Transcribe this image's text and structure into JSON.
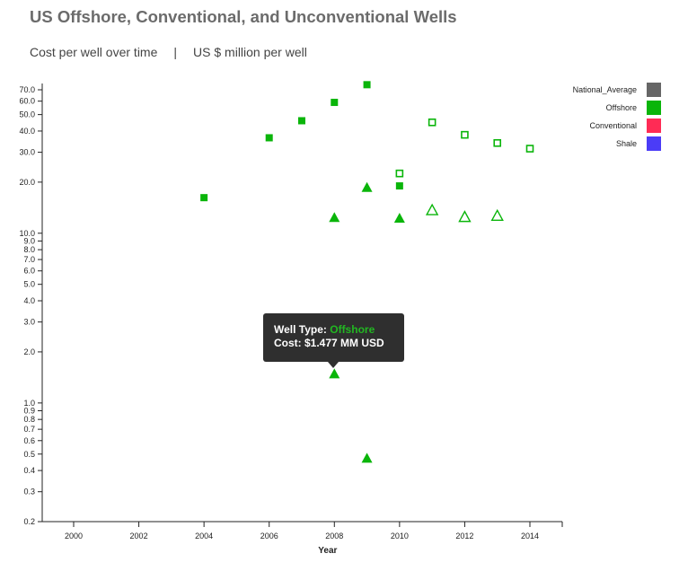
{
  "title": "US Offshore, Conventional, and Unconventional Wells",
  "subtitle_left": "Cost per well over time",
  "subtitle_sep": "|",
  "subtitle_right": "US $ million per well",
  "legend": [
    {
      "label": "National_Average",
      "color": "#666666"
    },
    {
      "label": "Offshore",
      "color": "#0ab50a"
    },
    {
      "label": "Conventional",
      "color": "#ff2b55"
    },
    {
      "label": "Shale",
      "color": "#4b3cf7"
    }
  ],
  "tooltip": {
    "type_label": "Well Type: ",
    "type_value": "Offshore",
    "cost_text": "Cost: $1.477 MM USD"
  },
  "chart_data": {
    "type": "scatter",
    "xlabel": "Year",
    "ylabel": "",
    "xlim": [
      1999,
      2015
    ],
    "ylim": [
      0.2,
      80
    ],
    "yscale": "log",
    "x_ticks": [
      "2000",
      "2002",
      "2004",
      "2006",
      "2008",
      "2010",
      "2012",
      "2014"
    ],
    "y_ticks": [
      {
        "v": 0.2,
        "label": "0.2"
      },
      {
        "v": 0.3,
        "label": "0.3"
      },
      {
        "v": 0.4,
        "label": "0.4"
      },
      {
        "v": 0.5,
        "label": "0.5"
      },
      {
        "v": 0.6,
        "label": "0.6"
      },
      {
        "v": 0.7,
        "label": "0.7"
      },
      {
        "v": 0.8,
        "label": "0.8"
      },
      {
        "v": 0.9,
        "label": "0.9"
      },
      {
        "v": 1.0,
        "label": "1.0"
      },
      {
        "v": 2.0,
        "label": "2.0"
      },
      {
        "v": 3.0,
        "label": "3.0"
      },
      {
        "v": 4.0,
        "label": "4.0"
      },
      {
        "v": 5.0,
        "label": "5.0"
      },
      {
        "v": 6.0,
        "label": "6.0"
      },
      {
        "v": 7.0,
        "label": "7.0"
      },
      {
        "v": 8.0,
        "label": "8.0"
      },
      {
        "v": 9.0,
        "label": "9.0"
      },
      {
        "v": 10.0,
        "label": "10.0"
      },
      {
        "v": 20.0,
        "label": "20.0"
      },
      {
        "v": 30.0,
        "label": "30.0"
      },
      {
        "v": 40.0,
        "label": "40.0"
      },
      {
        "v": 50.0,
        "label": "50.0"
      },
      {
        "v": 60.0,
        "label": "60.0"
      },
      {
        "v": 70.0,
        "label": "70.0"
      }
    ],
    "series": [
      {
        "name": "Offshore",
        "color": "#0ab50a",
        "points": [
          {
            "x": 2004,
            "y": 16.2,
            "shape": "square",
            "filled": true
          },
          {
            "x": 2006,
            "y": 36.5,
            "shape": "square",
            "filled": true
          },
          {
            "x": 2007,
            "y": 46.0,
            "shape": "square",
            "filled": true
          },
          {
            "x": 2008,
            "y": 59.0,
            "shape": "square",
            "filled": true
          },
          {
            "x": 2009,
            "y": 75.0,
            "shape": "square",
            "filled": true
          },
          {
            "x": 2010,
            "y": 19.0,
            "shape": "square",
            "filled": true
          },
          {
            "x": 2010,
            "y": 22.5,
            "shape": "square",
            "filled": false
          },
          {
            "x": 2011,
            "y": 45.0,
            "shape": "square",
            "filled": false
          },
          {
            "x": 2012,
            "y": 38.0,
            "shape": "square",
            "filled": false
          },
          {
            "x": 2013,
            "y": 34.0,
            "shape": "square",
            "filled": false
          },
          {
            "x": 2014,
            "y": 31.5,
            "shape": "square",
            "filled": false
          },
          {
            "x": 2008,
            "y": 12.3,
            "shape": "triangle",
            "filled": true
          },
          {
            "x": 2009,
            "y": 18.5,
            "shape": "triangle",
            "filled": true
          },
          {
            "x": 2010,
            "y": 12.2,
            "shape": "triangle",
            "filled": true
          },
          {
            "x": 2011,
            "y": 13.6,
            "shape": "triangle",
            "filled": false
          },
          {
            "x": 2012,
            "y": 12.4,
            "shape": "triangle",
            "filled": false
          },
          {
            "x": 2013,
            "y": 12.6,
            "shape": "triangle",
            "filled": false
          },
          {
            "x": 2008,
            "y": 1.477,
            "shape": "triangle",
            "filled": true
          },
          {
            "x": 2009,
            "y": 0.47,
            "shape": "triangle",
            "filled": true
          }
        ]
      }
    ]
  }
}
